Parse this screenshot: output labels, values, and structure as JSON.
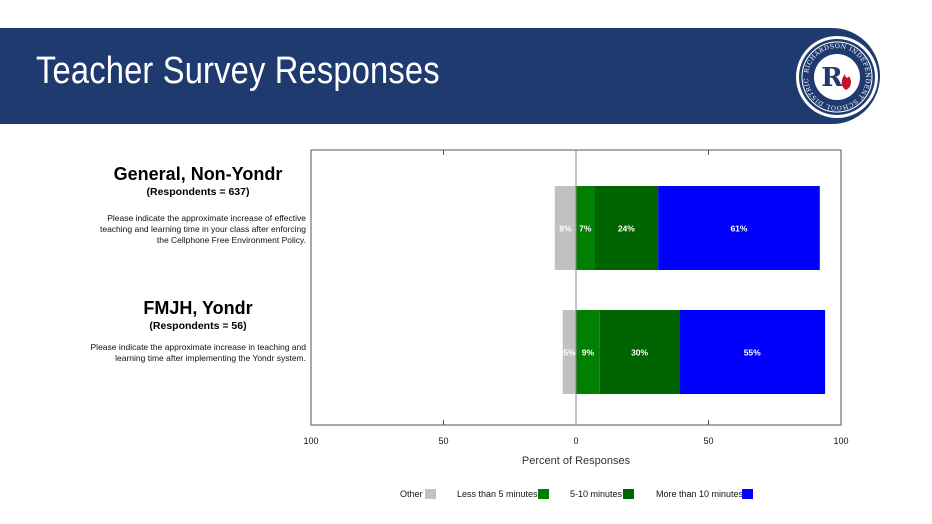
{
  "header": {
    "title": "Teacher Survey Responses"
  },
  "logo": {
    "ring_text": "RICHARDSON INDEPENDENT SCHOOL DISTRICT",
    "letter": "R",
    "icon": "flame-icon",
    "colors": {
      "navy": "#1f3a6e",
      "red": "#c8102e"
    }
  },
  "groups": [
    {
      "title": "General, Non-Yondr",
      "respondents": "(Respondents = 637)",
      "question": "Please indicate the approximate increase of effective teaching and learning time in your class after enforcing the Cellphone Free Environment Policy."
    },
    {
      "title": "FMJH, Yondr",
      "respondents": "(Respondents = 56)",
      "question": "Please indicate the approximate increase in teaching and learning time after implementing the Yondr system."
    }
  ],
  "chart_data": {
    "type": "bar",
    "orientation": "horizontal",
    "stacked": "diverging",
    "categories": [
      "General, Non-Yondr",
      "FMJH, Yondr"
    ],
    "series": [
      {
        "name": "Other",
        "color": "#c0c0c0",
        "values": [
          8,
          5
        ],
        "side": "negative",
        "labels": [
          "8%",
          "5%"
        ]
      },
      {
        "name": "Less than 5 minutes",
        "color": "#008000",
        "values": [
          7,
          9
        ],
        "side": "positive",
        "labels": [
          "7%",
          "9%"
        ]
      },
      {
        "name": "5-10 minutes",
        "color": "#006400",
        "values": [
          24,
          30
        ],
        "side": "positive",
        "labels": [
          "24%",
          "30%"
        ]
      },
      {
        "name": "More than 10 minutes",
        "color": "#0000ff",
        "values": [
          61,
          55
        ],
        "side": "positive",
        "labels": [
          "61%",
          "55%"
        ]
      }
    ],
    "xlim": [
      -100,
      100
    ],
    "x_ticks": [
      "100",
      "50",
      "0",
      "50",
      "100"
    ],
    "xlabel": "Percent of Responses",
    "legend": "bottom",
    "grid": false
  }
}
